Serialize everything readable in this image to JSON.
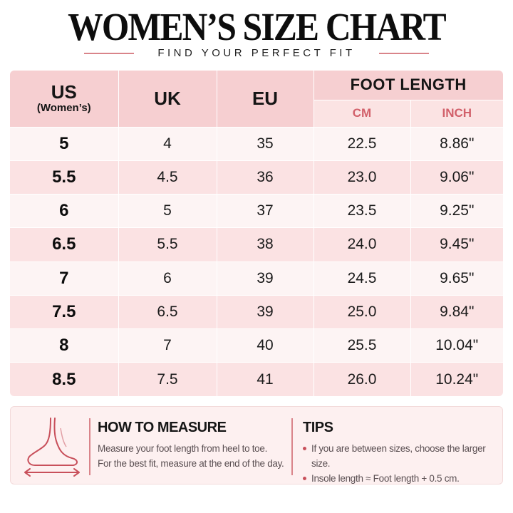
{
  "header": {
    "title": "WOMEN’S SIZE CHART",
    "subtitle": "FIND YOUR PERFECT FIT"
  },
  "table": {
    "headers": {
      "us": "US",
      "us_sub": "(Women’s)",
      "uk": "UK",
      "eu": "EU",
      "foot_length": "FOOT LENGTH",
      "cm": "CM",
      "inch": "INCH"
    },
    "rows": [
      {
        "us": "5",
        "uk": "4",
        "eu": "35",
        "cm": "22.5",
        "inch": "8.86\""
      },
      {
        "us": "5.5",
        "uk": "4.5",
        "eu": "36",
        "cm": "23.0",
        "inch": "9.06\""
      },
      {
        "us": "6",
        "uk": "5",
        "eu": "37",
        "cm": "23.5",
        "inch": "9.25\""
      },
      {
        "us": "6.5",
        "uk": "5.5",
        "eu": "38",
        "cm": "24.0",
        "inch": "9.45\""
      },
      {
        "us": "7",
        "uk": "6",
        "eu": "39",
        "cm": "24.5",
        "inch": "9.65\""
      },
      {
        "us": "7.5",
        "uk": "6.5",
        "eu": "39",
        "cm": "25.0",
        "inch": "9.84\""
      },
      {
        "us": "8",
        "uk": "7",
        "eu": "40",
        "cm": "25.5",
        "inch": "10.04\""
      },
      {
        "us": "8.5",
        "uk": "7.5",
        "eu": "41",
        "cm": "26.0",
        "inch": "10.24\""
      }
    ]
  },
  "info": {
    "icon": "foot-measure-icon",
    "how_to_measure": {
      "title": "HOW TO MEASURE",
      "line1": "Measure your foot length from heel to toe.",
      "line2": "For the best fit, measure at the end of the day."
    },
    "tips": {
      "title": "TIPS",
      "items": [
        "If you are between sizes, choose the larger size.",
        "Insole length ≈ Foot length + 0.5 cm."
      ]
    }
  },
  "colors": {
    "header_bg": "#f6cfd1",
    "subheader_bg": "#fbe3e3",
    "row_light": "#fdf4f4",
    "row_dark": "#fbe2e3",
    "accent": "#d2606a"
  }
}
